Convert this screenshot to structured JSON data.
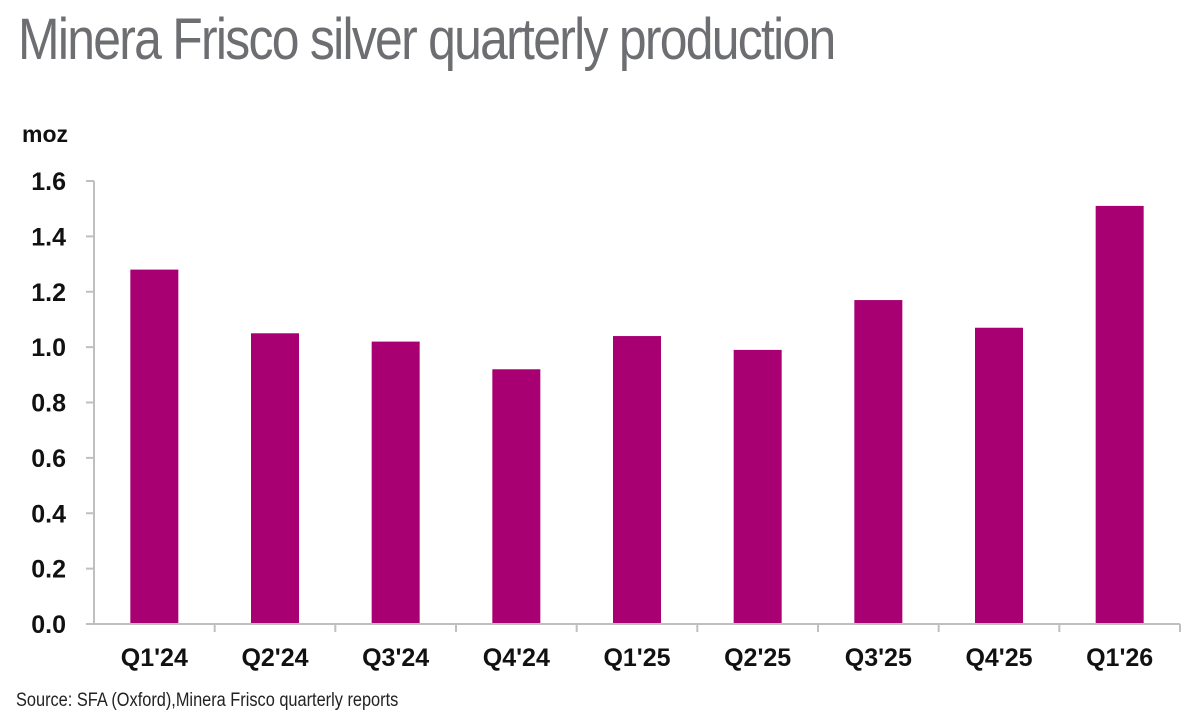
{
  "title": "Minera Frisco silver quarterly production",
  "source": "Source: SFA (Oxford),Minera Frisco quarterly reports",
  "colors": {
    "bar": "#a80072",
    "axis": "#bfbfbf",
    "title": "#6d6e71"
  },
  "chart_data": {
    "type": "bar",
    "title": "Minera Frisco silver quarterly production",
    "ylabel": "moz",
    "xlabel": "",
    "ylim": [
      0,
      1.6
    ],
    "yticks": [
      "0.0",
      "0.2",
      "0.4",
      "0.6",
      "0.8",
      "1.0",
      "1.2",
      "1.4",
      "1.6"
    ],
    "categories": [
      "Q1'24",
      "Q2'24",
      "Q3'24",
      "Q4'24",
      "Q1'25",
      "Q2'25",
      "Q3'25",
      "Q4'25",
      "Q1'26"
    ],
    "values": [
      1.28,
      1.05,
      1.02,
      0.92,
      1.04,
      0.99,
      1.17,
      1.07,
      1.51
    ],
    "grid": false,
    "legend": "none"
  }
}
